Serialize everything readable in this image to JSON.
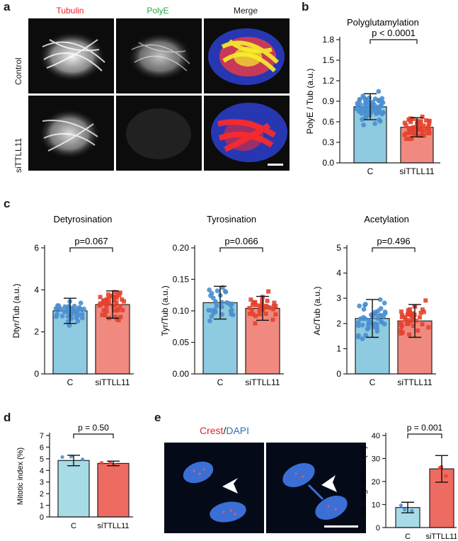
{
  "panels": {
    "a": {
      "letter": "a",
      "channels": [
        "Tubulin",
        "PolyE",
        "Merge"
      ],
      "channel_colors": [
        "#e8232b",
        "#27a844",
        "#1a1a1a"
      ],
      "rows": [
        "Control",
        "siTTLL11"
      ]
    },
    "b": {
      "letter": "b"
    },
    "c": {
      "letter": "c"
    },
    "d": {
      "letter": "d"
    },
    "e": {
      "letter": "e",
      "stain_red": "Crest",
      "stain_sep": "/",
      "stain_blue": "DAPI",
      "red_color": "#e8232b",
      "blue_color": "#2d6fb7"
    }
  },
  "colors": {
    "control_bar": "#8ecae0",
    "control_dot": "#4a8fd0",
    "si_bar": "#f08a80",
    "si_dot": "#e3432e",
    "bar_light": "#a7dbe6",
    "bar_red": "#ee6b62"
  },
  "chart_data": [
    {
      "id": "b",
      "type": "bar",
      "title": "Polyglutamylation",
      "categories": [
        "C",
        "siTTLL11"
      ],
      "values": [
        0.82,
        0.52
      ],
      "errors": [
        0.19,
        0.14
      ],
      "ylabel": "PolyE / Tub (a.u.)",
      "ylim": [
        0,
        1.8
      ],
      "yticks": [
        "0.0",
        "0.3",
        "0.6",
        "0.9",
        "1.2",
        "1.5",
        "1.8"
      ],
      "annotation": "p < 0.0001"
    },
    {
      "id": "c1",
      "type": "bar",
      "title": "Detyrosination",
      "categories": [
        "C",
        "siTTLL11"
      ],
      "values": [
        3.0,
        3.3
      ],
      "errors": [
        0.6,
        0.65
      ],
      "ylabel": "Dtyr/Tub (a.u.)",
      "ylim": [
        0,
        6
      ],
      "yticks": [
        "0",
        "2",
        "4",
        "6"
      ],
      "annotation": "p=0.067"
    },
    {
      "id": "c2",
      "type": "bar",
      "title": "Tyrosination",
      "categories": [
        "C",
        "siTTLL11"
      ],
      "values": [
        0.113,
        0.104
      ],
      "errors": [
        0.026,
        0.019
      ],
      "ylabel": "Tyr/Tub (a.u.)",
      "ylim": [
        0,
        0.2
      ],
      "yticks": [
        "0.00",
        "0.05",
        "0.10",
        "0.15",
        "0.20"
      ],
      "annotation": "p=0.066"
    },
    {
      "id": "c3",
      "type": "bar",
      "title": "Acetylation",
      "categories": [
        "C",
        "siTTLL11"
      ],
      "values": [
        2.2,
        2.1
      ],
      "errors": [
        0.75,
        0.65
      ],
      "ylabel": "Ac/Tub (a.u.)",
      "ylim": [
        0,
        5
      ],
      "yticks": [
        "0",
        "1",
        "2",
        "3",
        "4",
        "5"
      ],
      "annotation": "p=0.496"
    },
    {
      "id": "d",
      "type": "bar",
      "title": "",
      "categories": [
        "C",
        "siTTLL11"
      ],
      "values": [
        4.85,
        4.6
      ],
      "errors": [
        0.45,
        0.2
      ],
      "ylabel": "Mitotic index (%)",
      "ylim": [
        0,
        7
      ],
      "yticks": [
        "0",
        "1",
        "2",
        "3",
        "4",
        "5",
        "6",
        "7"
      ],
      "annotation": "p = 0.50"
    },
    {
      "id": "e",
      "type": "bar",
      "title": "",
      "categories": [
        "C",
        "siTTLL11"
      ],
      "values": [
        8.7,
        25.5
      ],
      "errors": [
        2.3,
        5.8
      ],
      "ylabel": "chr. segr.defects (%)",
      "ylim": [
        0,
        40
      ],
      "yticks": [
        "0",
        "10",
        "20",
        "30",
        "40"
      ],
      "annotation": "p = 0.001"
    }
  ]
}
